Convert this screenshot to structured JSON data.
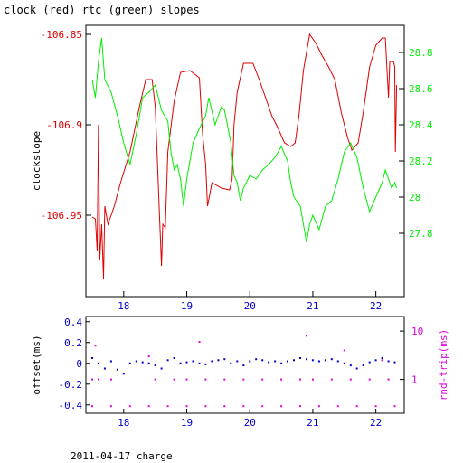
{
  "title": "clock (red) rtc (green) slopes",
  "footer": "2011-04-17 charge",
  "colors": {
    "clock": "#dd0000",
    "rtc": "#00ee00",
    "offset": "#0000cc",
    "rtt": "#dd00dd",
    "axes": "#000000"
  },
  "chart_data": [
    {
      "type": "line",
      "title": "clock (red) rtc (green) slopes",
      "xlabel": "",
      "ylabel": "clockslope",
      "y2label": "",
      "xlim": [
        17.4,
        22.45
      ],
      "ylim": [
        -106.995,
        -106.845
      ],
      "y2lim": [
        27.45,
        28.95
      ],
      "x_ticks": [
        "18",
        "19",
        "20",
        "21",
        "22"
      ],
      "y_ticks": [
        "-106.85",
        "-106.9",
        "-106.95"
      ],
      "y2_ticks": [
        "28.8",
        "28.6",
        "28.4",
        "28.2",
        "28",
        "27.8"
      ],
      "series": [
        {
          "axis": "left",
          "color": "red",
          "points": [
            [
              17.5,
              -106.951
            ],
            [
              17.55,
              -106.952
            ],
            [
              17.58,
              -106.97
            ],
            [
              17.6,
              -106.9
            ],
            [
              17.62,
              -106.975
            ],
            [
              17.65,
              -106.955
            ],
            [
              17.68,
              -106.985
            ],
            [
              17.7,
              -106.945
            ],
            [
              17.75,
              -106.955
            ],
            [
              17.85,
              -106.945
            ],
            [
              17.95,
              -106.932
            ],
            [
              18.1,
              -106.915
            ],
            [
              18.25,
              -106.89
            ],
            [
              18.35,
              -106.875
            ],
            [
              18.45,
              -106.875
            ],
            [
              18.5,
              -106.89
            ],
            [
              18.55,
              -106.935
            ],
            [
              18.6,
              -106.978
            ],
            [
              18.62,
              -106.955
            ],
            [
              18.66,
              -106.957
            ],
            [
              18.7,
              -106.915
            ],
            [
              18.8,
              -106.887
            ],
            [
              18.9,
              -106.871
            ],
            [
              19.05,
              -106.87
            ],
            [
              19.2,
              -106.874
            ],
            [
              19.25,
              -106.905
            ],
            [
              19.3,
              -106.922
            ],
            [
              19.33,
              -106.945
            ],
            [
              19.4,
              -106.932
            ],
            [
              19.55,
              -106.935
            ],
            [
              19.68,
              -106.936
            ],
            [
              19.72,
              -106.93
            ],
            [
              19.75,
              -106.9
            ],
            [
              19.8,
              -106.882
            ],
            [
              19.9,
              -106.866
            ],
            [
              20.05,
              -106.866
            ],
            [
              20.15,
              -106.875
            ],
            [
              20.25,
              -106.885
            ],
            [
              20.35,
              -106.895
            ],
            [
              20.45,
              -106.902
            ],
            [
              20.55,
              -106.91
            ],
            [
              20.65,
              -106.912
            ],
            [
              20.72,
              -106.91
            ],
            [
              20.78,
              -106.895
            ],
            [
              20.85,
              -106.87
            ],
            [
              20.95,
              -106.85
            ],
            [
              21.05,
              -106.855
            ],
            [
              21.15,
              -106.862
            ],
            [
              21.25,
              -106.868
            ],
            [
              21.35,
              -106.875
            ],
            [
              21.45,
              -106.893
            ],
            [
              21.55,
              -106.907
            ],
            [
              21.62,
              -106.914
            ],
            [
              21.72,
              -106.91
            ],
            [
              21.8,
              -106.893
            ],
            [
              21.9,
              -106.868
            ],
            [
              22.0,
              -106.856
            ],
            [
              22.1,
              -106.852
            ],
            [
              22.15,
              -106.852
            ],
            [
              22.2,
              -106.885
            ],
            [
              22.22,
              -106.865
            ],
            [
              22.28,
              -106.865
            ],
            [
              22.3,
              -106.868
            ],
            [
              22.31,
              -106.915
            ],
            [
              22.33,
              -106.878
            ]
          ]
        },
        {
          "axis": "right",
          "color": "green",
          "points": [
            [
              17.5,
              28.65
            ],
            [
              17.55,
              28.55
            ],
            [
              17.6,
              28.75
            ],
            [
              17.65,
              28.88
            ],
            [
              17.7,
              28.65
            ],
            [
              17.8,
              28.58
            ],
            [
              17.9,
              28.45
            ],
            [
              18.0,
              28.3
            ],
            [
              18.1,
              28.18
            ],
            [
              18.2,
              28.35
            ],
            [
              18.3,
              28.55
            ],
            [
              18.4,
              28.58
            ],
            [
              18.5,
              28.62
            ],
            [
              18.6,
              28.48
            ],
            [
              18.7,
              28.42
            ],
            [
              18.75,
              28.25
            ],
            [
              18.8,
              28.15
            ],
            [
              18.85,
              28.18
            ],
            [
              18.9,
              28.1
            ],
            [
              18.95,
              27.95
            ],
            [
              19.0,
              28.1
            ],
            [
              19.1,
              28.3
            ],
            [
              19.2,
              28.38
            ],
            [
              19.3,
              28.45
            ],
            [
              19.35,
              28.55
            ],
            [
              19.45,
              28.4
            ],
            [
              19.55,
              28.5
            ],
            [
              19.6,
              28.48
            ],
            [
              19.7,
              28.3
            ],
            [
              19.75,
              28.12
            ],
            [
              19.8,
              28.08
            ],
            [
              19.85,
              27.98
            ],
            [
              19.9,
              28.05
            ],
            [
              20.0,
              28.12
            ],
            [
              20.1,
              28.1
            ],
            [
              20.2,
              28.15
            ],
            [
              20.3,
              28.18
            ],
            [
              20.4,
              28.22
            ],
            [
              20.5,
              28.28
            ],
            [
              20.6,
              28.2
            ],
            [
              20.65,
              28.08
            ],
            [
              20.7,
              28.0
            ],
            [
              20.8,
              27.95
            ],
            [
              20.9,
              27.75
            ],
            [
              20.95,
              27.85
            ],
            [
              21.0,
              27.9
            ],
            [
              21.1,
              27.82
            ],
            [
              21.2,
              27.95
            ],
            [
              21.3,
              27.98
            ],
            [
              21.4,
              28.1
            ],
            [
              21.5,
              28.25
            ],
            [
              21.6,
              28.3
            ],
            [
              21.7,
              28.22
            ],
            [
              21.8,
              28.05
            ],
            [
              21.9,
              27.92
            ],
            [
              22.0,
              28.0
            ],
            [
              22.1,
              28.08
            ],
            [
              22.15,
              28.15
            ],
            [
              22.2,
              28.1
            ],
            [
              22.25,
              28.05
            ],
            [
              22.3,
              28.08
            ],
            [
              22.33,
              28.05
            ]
          ]
        }
      ]
    },
    {
      "type": "scatter",
      "xlabel": "",
      "ylabel": "offset(ms)",
      "y2label": "rnd-trip(ms)",
      "xlim": [
        17.4,
        22.45
      ],
      "ylim": [
        -0.48,
        0.45
      ],
      "y2_scale": "log",
      "y2lim": [
        0.2,
        20
      ],
      "x_ticks": [
        "18",
        "19",
        "20",
        "21",
        "22"
      ],
      "y_ticks": [
        "0.4",
        "0.2",
        "0",
        "-0.2",
        "-0.4"
      ],
      "y2_ticks": [
        "10",
        "1"
      ],
      "series": [
        {
          "axis": "left",
          "color": "blue",
          "points": [
            [
              17.5,
              0.05
            ],
            [
              17.6,
              0.0
            ],
            [
              17.7,
              -0.05
            ],
            [
              17.8,
              0.02
            ],
            [
              17.9,
              -0.06
            ],
            [
              18.0,
              -0.1
            ],
            [
              18.1,
              0.0
            ],
            [
              18.2,
              0.02
            ],
            [
              18.3,
              0.01
            ],
            [
              18.4,
              0.0
            ],
            [
              18.5,
              -0.02
            ],
            [
              18.6,
              -0.05
            ],
            [
              18.7,
              0.03
            ],
            [
              18.8,
              0.05
            ],
            [
              18.9,
              0.0
            ],
            [
              19.0,
              0.01
            ],
            [
              19.1,
              0.02
            ],
            [
              19.2,
              0.0
            ],
            [
              19.3,
              -0.01
            ],
            [
              19.4,
              0.02
            ],
            [
              19.5,
              0.03
            ],
            [
              19.6,
              0.04
            ],
            [
              19.7,
              0.0
            ],
            [
              19.8,
              0.02
            ],
            [
              19.9,
              -0.02
            ],
            [
              20.0,
              0.02
            ],
            [
              20.1,
              0.04
            ],
            [
              20.2,
              0.03
            ],
            [
              20.3,
              0.01
            ],
            [
              20.4,
              0.02
            ],
            [
              20.5,
              0.0
            ],
            [
              20.6,
              0.02
            ],
            [
              20.7,
              0.03
            ],
            [
              20.8,
              0.05
            ],
            [
              20.9,
              0.04
            ],
            [
              21.0,
              0.03
            ],
            [
              21.1,
              0.02
            ],
            [
              21.2,
              0.03
            ],
            [
              21.3,
              0.04
            ],
            [
              21.4,
              0.02
            ],
            [
              21.5,
              0.0
            ],
            [
              21.6,
              -0.02
            ],
            [
              21.7,
              -0.05
            ],
            [
              21.8,
              -0.02
            ],
            [
              21.9,
              0.01
            ],
            [
              22.0,
              0.03
            ],
            [
              22.1,
              0.05
            ],
            [
              22.2,
              0.02
            ],
            [
              22.3,
              0.01
            ]
          ]
        },
        {
          "axis": "right",
          "color": "magenta",
          "points": [
            [
              17.5,
              1.0
            ],
            [
              17.6,
              1.0
            ],
            [
              17.8,
              1.0
            ],
            [
              18.5,
              1.0
            ],
            [
              18.8,
              1.0
            ],
            [
              19.0,
              1.0
            ],
            [
              19.3,
              1.0
            ],
            [
              19.6,
              1.0
            ],
            [
              19.9,
              1.0
            ],
            [
              20.2,
              1.0
            ],
            [
              20.5,
              1.0
            ],
            [
              20.8,
              1.0
            ],
            [
              21.0,
              1.0
            ],
            [
              21.3,
              1.0
            ],
            [
              21.6,
              1.0
            ],
            [
              21.9,
              1.0
            ],
            [
              22.2,
              1.0
            ],
            [
              17.5,
              0.28
            ],
            [
              17.8,
              0.28
            ],
            [
              18.1,
              0.28
            ],
            [
              18.4,
              0.28
            ],
            [
              18.7,
              0.28
            ],
            [
              19.0,
              0.28
            ],
            [
              19.3,
              0.28
            ],
            [
              19.6,
              0.28
            ],
            [
              19.9,
              0.28
            ],
            [
              20.2,
              0.28
            ],
            [
              20.5,
              0.28
            ],
            [
              20.8,
              0.28
            ],
            [
              21.1,
              0.28
            ],
            [
              21.4,
              0.28
            ],
            [
              21.7,
              0.28
            ],
            [
              22.0,
              0.28
            ],
            [
              22.3,
              0.28
            ],
            [
              17.55,
              5.0
            ],
            [
              18.4,
              3.0
            ],
            [
              19.2,
              6.0
            ],
            [
              20.9,
              8.0
            ],
            [
              21.5,
              4.0
            ],
            [
              22.1,
              2.5
            ]
          ]
        }
      ]
    }
  ]
}
